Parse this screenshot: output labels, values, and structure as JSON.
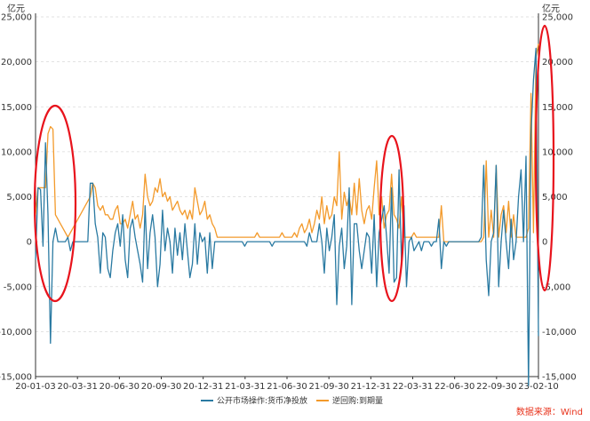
{
  "chart_data": {
    "type": "line",
    "y_unit_left": "亿元",
    "y_unit_right": "亿元",
    "ylim": [
      -15000,
      25000
    ],
    "yticks": [
      -15000,
      -10000,
      -5000,
      0,
      5000,
      10000,
      15000,
      20000,
      25000
    ],
    "ytick_labels": [
      "-15,000",
      "-10,000",
      "-5,000",
      "0",
      "5,000",
      "10,000",
      "15,000",
      "20,000",
      "25,000"
    ],
    "x_labels": [
      "20-01-03",
      "20-03-31",
      "20-06-30",
      "20-09-30",
      "20-12-31",
      "21-03-31",
      "21-06-30",
      "21-09-30",
      "21-12-31",
      "22-03-31",
      "22-06-30",
      "22-09-30",
      "23-02-10"
    ],
    "grid": "horizontal dashed",
    "legend_position": "bottom-center",
    "source_text": "数据来源：Wind",
    "colors": {
      "net": "#2a7aa2",
      "maturity": "#f39a2b",
      "circle": "#e8131c"
    },
    "series": [
      {
        "name": "公开市场操作:货币净投放",
        "values": [
          -2000,
          6000,
          5800,
          -500,
          11000,
          3000,
          -11300,
          0,
          1500,
          0,
          0,
          0,
          0,
          500,
          -1000,
          0,
          0,
          0,
          0,
          0,
          0,
          0,
          6500,
          6500,
          2000,
          500,
          -3500,
          1000,
          500,
          -3000,
          -4000,
          -1000,
          1000,
          2000,
          -500,
          3000,
          -2000,
          -4000,
          1500,
          2500,
          500,
          -1000,
          -2500,
          -4500,
          4000,
          -3000,
          1000,
          3000,
          500,
          -5000,
          -2500,
          3500,
          -1000,
          1500,
          0,
          -3500,
          1500,
          -1500,
          1000,
          -2000,
          2000,
          -1000,
          -4000,
          -2500,
          2000,
          -2500,
          1000,
          0,
          500,
          -3500,
          1000,
          -3000,
          0,
          0,
          0,
          0,
          0,
          0,
          0,
          0,
          0,
          0,
          0,
          0,
          -500,
          0,
          0,
          0,
          0,
          0,
          0,
          0,
          0,
          0,
          0,
          -500,
          0,
          0,
          0,
          0,
          0,
          0,
          0,
          0,
          0,
          0,
          0,
          0,
          0,
          -500,
          1000,
          0,
          0,
          0,
          2000,
          0,
          -3500,
          1500,
          -1000,
          500,
          3000,
          -7000,
          -500,
          1500,
          -3000,
          -500,
          6000,
          -7000,
          2000,
          2000,
          -1000,
          -3000,
          -1000,
          1000,
          500,
          -3500,
          3000,
          -5000,
          1000,
          2500,
          4000,
          500,
          -3500,
          6000,
          -4500,
          -4000,
          8000,
          -2500,
          4000,
          -5000,
          0,
          500,
          -1000,
          -500,
          0,
          -1000,
          0,
          0,
          0,
          -500,
          0,
          0,
          2500,
          -3000,
          0,
          -500,
          0,
          0,
          0,
          0,
          0,
          0,
          0,
          0,
          0,
          0,
          0,
          0,
          0,
          500,
          8500,
          -2000,
          -6000,
          0,
          1000,
          8500,
          -5000,
          0,
          3500,
          0,
          -3000,
          2500,
          -2000,
          0,
          5000,
          8000,
          0,
          9500,
          -16000,
          12000,
          18000,
          21500,
          -10500
        ]
      },
      {
        "name": "逆回购:到期量",
        "values": [
          3000,
          6000,
          6000,
          6000,
          6000,
          12000,
          12800,
          12500,
          3000,
          2500,
          2000,
          1500,
          1000,
          500,
          1000,
          1500,
          2000,
          2500,
          3000,
          3500,
          4000,
          4500,
          5000,
          6500,
          6000,
          4000,
          3500,
          4000,
          3000,
          3000,
          2500,
          2500,
          3500,
          4000,
          2000,
          2000,
          2500,
          1500,
          3000,
          4500,
          2500,
          3000,
          1500,
          3000,
          7500,
          5000,
          4000,
          4500,
          6000,
          5500,
          7000,
          5000,
          5500,
          4500,
          5000,
          3500,
          4000,
          4500,
          3500,
          3000,
          3500,
          2500,
          3500,
          2500,
          6000,
          4500,
          3000,
          3500,
          4500,
          2500,
          3000,
          2000,
          1500,
          500,
          500,
          500,
          500,
          500,
          500,
          500,
          500,
          500,
          500,
          500,
          500,
          500,
          500,
          500,
          500,
          1000,
          500,
          500,
          500,
          500,
          500,
          500,
          500,
          500,
          500,
          1000,
          500,
          500,
          500,
          500,
          1000,
          500,
          1500,
          2000,
          1000,
          1500,
          2500,
          1000,
          2000,
          3500,
          2500,
          5000,
          2000,
          4000,
          2500,
          3000,
          5000,
          4000,
          10000,
          2500,
          5500,
          4000,
          5000,
          3000,
          6500,
          3000,
          7000,
          3500,
          2000,
          3500,
          4000,
          2500,
          6000,
          9000,
          3000,
          5000,
          1500,
          3000,
          3500,
          7500,
          3000,
          2500,
          1500,
          5000,
          500,
          500,
          500,
          500,
          1000,
          500,
          500,
          500,
          500,
          500,
          500,
          500,
          500,
          500,
          500,
          4000,
          0,
          0,
          0,
          0,
          0,
          0,
          0,
          0,
          0,
          0,
          0,
          0,
          0,
          0,
          0,
          0,
          500,
          9000,
          500,
          3500,
          500,
          8500,
          500,
          3000,
          4000,
          1000,
          4500,
          500,
          3000,
          500,
          500,
          500,
          500,
          500,
          1500,
          16500,
          1000,
          20500,
          22000
        ]
      }
    ]
  }
}
